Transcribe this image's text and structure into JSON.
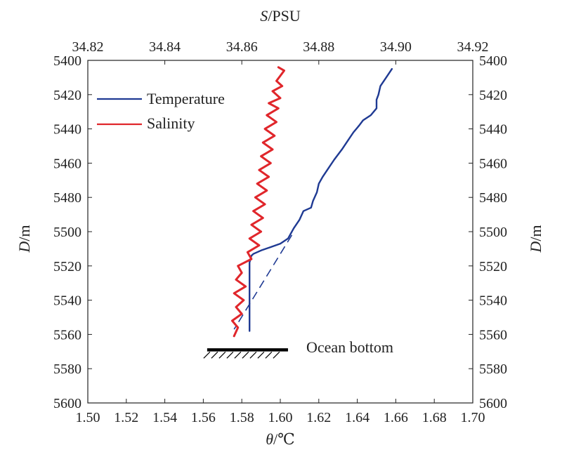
{
  "chart_data": {
    "type": "line",
    "top_axis": {
      "label_italic": "S",
      "label_rest": "/PSU",
      "range": [
        34.82,
        34.92
      ],
      "ticks": [
        "34.82",
        "34.84",
        "34.86",
        "34.88",
        "34.90",
        "34.92"
      ]
    },
    "bottom_axis": {
      "label_italic": "θ",
      "label_rest": "/℃",
      "range": [
        1.5,
        1.7
      ],
      "ticks": [
        "1.50",
        "1.52",
        "1.54",
        "1.56",
        "1.58",
        "1.60",
        "1.62",
        "1.64",
        "1.66",
        "1.68",
        "1.70"
      ]
    },
    "left_axis": {
      "label_italic": "D",
      "label_rest": "/m",
      "range": [
        5400,
        5600
      ],
      "inverted": true,
      "ticks": [
        "5400",
        "5420",
        "5440",
        "5460",
        "5480",
        "5500",
        "5520",
        "5540",
        "5560",
        "5580",
        "5600"
      ]
    },
    "right_axis": {
      "label_italic": "D",
      "label_rest": "/m",
      "ticks": [
        "5400",
        "5420",
        "5440",
        "5460",
        "5480",
        "5500",
        "5520",
        "5540",
        "5560",
        "5580",
        "5600"
      ]
    },
    "legend": {
      "position": "top-left",
      "entries": [
        {
          "name": "Temperature",
          "color": "#1f3a93"
        },
        {
          "name": "Salinity",
          "color": "#e0262b"
        }
      ]
    },
    "series": [
      {
        "name": "Temperature",
        "axis": "bottom",
        "color": "#1f3a93",
        "points": [
          [
            1.658,
            5405
          ],
          [
            1.655,
            5410
          ],
          [
            1.652,
            5415
          ],
          [
            1.651,
            5420
          ],
          [
            1.65,
            5423
          ],
          [
            1.65,
            5428
          ],
          [
            1.647,
            5432
          ],
          [
            1.643,
            5435
          ],
          [
            1.641,
            5438
          ],
          [
            1.638,
            5442
          ],
          [
            1.635,
            5447
          ],
          [
            1.632,
            5452
          ],
          [
            1.628,
            5458
          ],
          [
            1.625,
            5463
          ],
          [
            1.622,
            5468
          ],
          [
            1.62,
            5472
          ],
          [
            1.619,
            5477
          ],
          [
            1.617,
            5482
          ],
          [
            1.616,
            5486
          ],
          [
            1.612,
            5488
          ],
          [
            1.61,
            5493
          ],
          [
            1.607,
            5498
          ],
          [
            1.604,
            5504
          ],
          [
            1.6,
            5507
          ],
          [
            1.595,
            5509
          ],
          [
            1.59,
            5511
          ],
          [
            1.586,
            5513
          ],
          [
            1.585,
            5514
          ],
          [
            1.584,
            5518
          ],
          [
            1.584,
            5525
          ],
          [
            1.584,
            5540
          ],
          [
            1.584,
            5558
          ]
        ]
      },
      {
        "name": "Salinity",
        "axis": "top",
        "color": "#e0262b",
        "points": [
          [
            34.8695,
            5404
          ],
          [
            34.871,
            5406
          ],
          [
            34.87,
            5409
          ],
          [
            34.869,
            5412
          ],
          [
            34.8705,
            5415
          ],
          [
            34.868,
            5418
          ],
          [
            34.87,
            5422
          ],
          [
            34.867,
            5425
          ],
          [
            34.8695,
            5428
          ],
          [
            34.8665,
            5432
          ],
          [
            34.869,
            5436
          ],
          [
            34.866,
            5440
          ],
          [
            34.8685,
            5444
          ],
          [
            34.8655,
            5448
          ],
          [
            34.868,
            5452
          ],
          [
            34.865,
            5456
          ],
          [
            34.8675,
            5460
          ],
          [
            34.8645,
            5464
          ],
          [
            34.867,
            5468
          ],
          [
            34.864,
            5472
          ],
          [
            34.8665,
            5476
          ],
          [
            34.8635,
            5480
          ],
          [
            34.866,
            5484
          ],
          [
            34.863,
            5488
          ],
          [
            34.8655,
            5492
          ],
          [
            34.8625,
            5496
          ],
          [
            34.865,
            5500
          ],
          [
            34.862,
            5504
          ],
          [
            34.8645,
            5508
          ],
          [
            34.8615,
            5512
          ],
          [
            34.8625,
            5516
          ],
          [
            34.859,
            5520
          ],
          [
            34.86,
            5524
          ],
          [
            34.8585,
            5528
          ],
          [
            34.861,
            5532
          ],
          [
            34.858,
            5536
          ],
          [
            34.8605,
            5540
          ],
          [
            34.8585,
            5544
          ],
          [
            34.86,
            5548
          ],
          [
            34.8575,
            5552
          ],
          [
            34.859,
            5556
          ],
          [
            34.858,
            5561
          ]
        ]
      }
    ],
    "trend_line": {
      "axis": "bottom",
      "color": "#1f3a93",
      "style": "dashed",
      "points": [
        [
          1.606,
          5502
        ],
        [
          1.576,
          5557
        ]
      ]
    },
    "annotation": {
      "text": "Ocean bottom",
      "depth": 5569,
      "x_range": [
        1.562,
        1.604
      ]
    },
    "grid": false
  }
}
